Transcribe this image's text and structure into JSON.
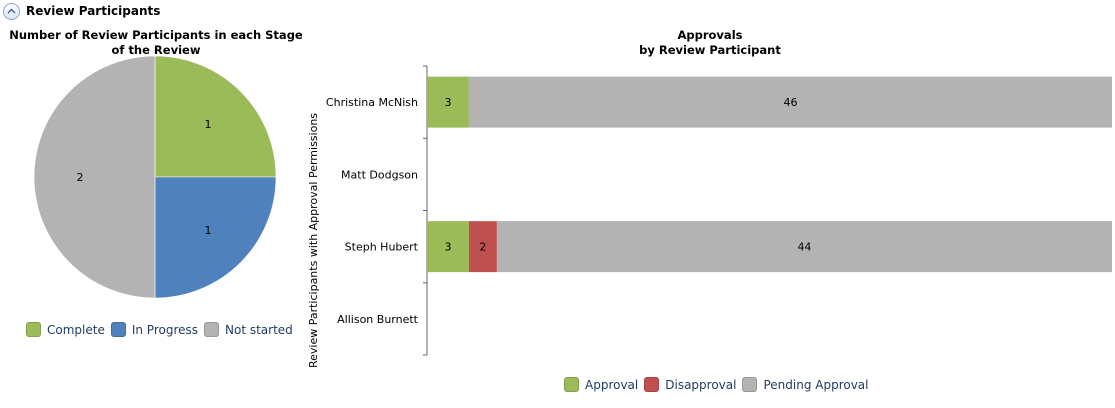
{
  "section": {
    "title": "Review Participants",
    "collapse_icon": "chevron-up-icon"
  },
  "colors": {
    "complete": "#9bbb59",
    "in_progress": "#4f81bd",
    "not_started": "#b3b3b3",
    "approval": "#9bbb59",
    "disapproval": "#c0504d",
    "pending": "#b3b3b3"
  },
  "chart_data": [
    {
      "type": "pie",
      "title": "Number of Review Participants in each Stage of the Review",
      "slices": [
        {
          "label": "Complete",
          "value": 1,
          "color": "#9bbb59"
        },
        {
          "label": "In Progress",
          "value": 1,
          "color": "#4f81bd"
        },
        {
          "label": "Not started",
          "value": 2,
          "color": "#b3b3b3"
        }
      ],
      "legend": [
        "Complete",
        "In Progress",
        "Not started"
      ],
      "legend_position": "bottom"
    },
    {
      "type": "bar",
      "orientation": "horizontal",
      "stacked": true,
      "title": "Approvals",
      "subtitle": "by Review Participant",
      "ylabel": "Review Participants with Approval Permissions",
      "categories": [
        "Christina McNish",
        "Matt Dodgson",
        "Steph Hubert",
        "Allison Burnett"
      ],
      "series": [
        {
          "name": "Approval",
          "color": "#9bbb59",
          "values": [
            3,
            0,
            3,
            0
          ]
        },
        {
          "name": "Disapproval",
          "color": "#c0504d",
          "values": [
            0,
            0,
            2,
            0
          ]
        },
        {
          "name": "Pending Approval",
          "color": "#b3b3b3",
          "values": [
            46,
            0,
            44,
            0
          ]
        }
      ],
      "xlim": [
        0,
        49
      ],
      "legend_position": "bottom"
    }
  ]
}
